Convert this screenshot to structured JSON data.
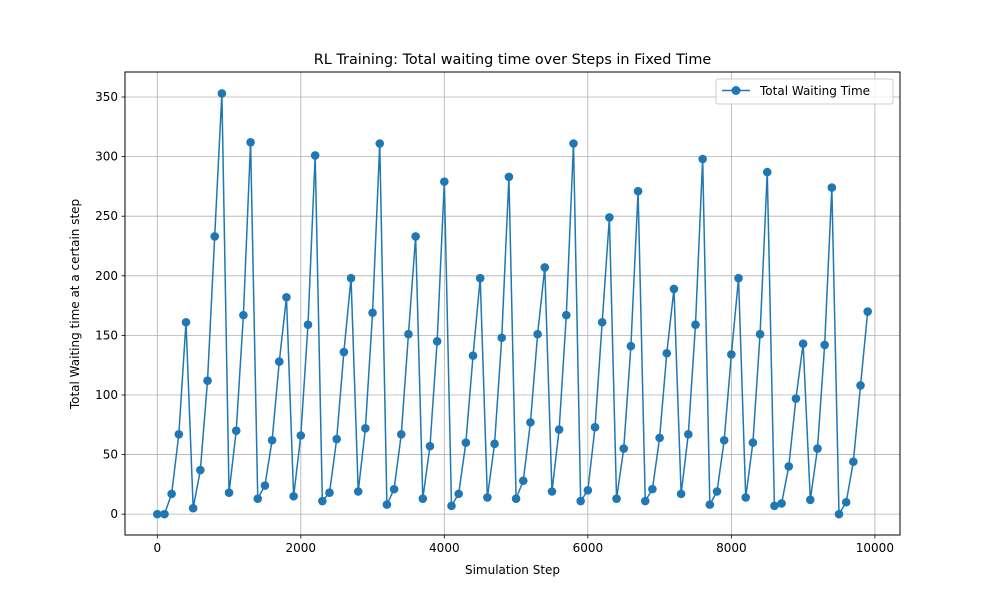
{
  "chart_data": {
    "type": "line",
    "title": "RL Training: Total waiting time over Steps in Fixed Time",
    "xlabel": "Simulation Step",
    "ylabel": "Total Waiting time at a certain step",
    "xlim": [
      -450,
      10350
    ],
    "ylim": [
      -17.5,
      371
    ],
    "xticks": [
      0,
      2000,
      4000,
      6000,
      8000,
      10000
    ],
    "yticks": [
      0,
      50,
      100,
      150,
      200,
      250,
      300,
      350
    ],
    "grid": true,
    "legend_position": "top-right",
    "marker": "circle",
    "color": "#1f77b4",
    "series": [
      {
        "name": "Total Waiting Time",
        "x": [
          0,
          100,
          200,
          300,
          400,
          500,
          600,
          700,
          800,
          900,
          1000,
          1100,
          1200,
          1300,
          1400,
          1500,
          1600,
          1700,
          1800,
          1900,
          2000,
          2100,
          2200,
          2300,
          2400,
          2500,
          2600,
          2700,
          2800,
          2900,
          3000,
          3100,
          3200,
          3300,
          3400,
          3500,
          3600,
          3700,
          3800,
          3900,
          4000,
          4100,
          4200,
          4300,
          4400,
          4500,
          4600,
          4700,
          4800,
          4900,
          5000,
          5100,
          5200,
          5300,
          5400,
          5500,
          5600,
          5700,
          5800,
          5900,
          6000,
          6100,
          6200,
          6300,
          6400,
          6500,
          6600,
          6700,
          6800,
          6900,
          7000,
          7100,
          7200,
          7300,
          7400,
          7500,
          7600,
          7700,
          7800,
          7900,
          8000,
          8100,
          8200,
          8300,
          8400,
          8500,
          8600,
          8700,
          8800,
          8900,
          9000,
          9100,
          9200,
          9300,
          9400,
          9500,
          9600,
          9700,
          9800,
          9900
        ],
        "y": [
          0,
          0,
          17,
          67,
          161,
          5,
          37,
          112,
          233,
          353,
          18,
          70,
          167,
          312,
          13,
          24,
          62,
          128,
          182,
          15,
          66,
          159,
          301,
          11,
          18,
          63,
          136,
          198,
          19,
          72,
          169,
          311,
          8,
          21,
          67,
          151,
          233,
          13,
          57,
          145,
          279,
          7,
          17,
          60,
          133,
          198,
          14,
          59,
          148,
          283,
          13,
          28,
          77,
          151,
          207,
          19,
          71,
          167,
          311,
          11,
          20,
          73,
          161,
          249,
          13,
          55,
          141,
          271,
          11,
          21,
          64,
          135,
          189,
          17,
          67,
          159,
          298,
          8,
          19,
          62,
          134,
          198,
          14,
          60,
          151,
          287,
          7,
          9,
          40,
          97,
          143,
          12,
          55,
          142,
          274,
          0,
          10,
          44,
          108,
          170
        ]
      }
    ]
  }
}
